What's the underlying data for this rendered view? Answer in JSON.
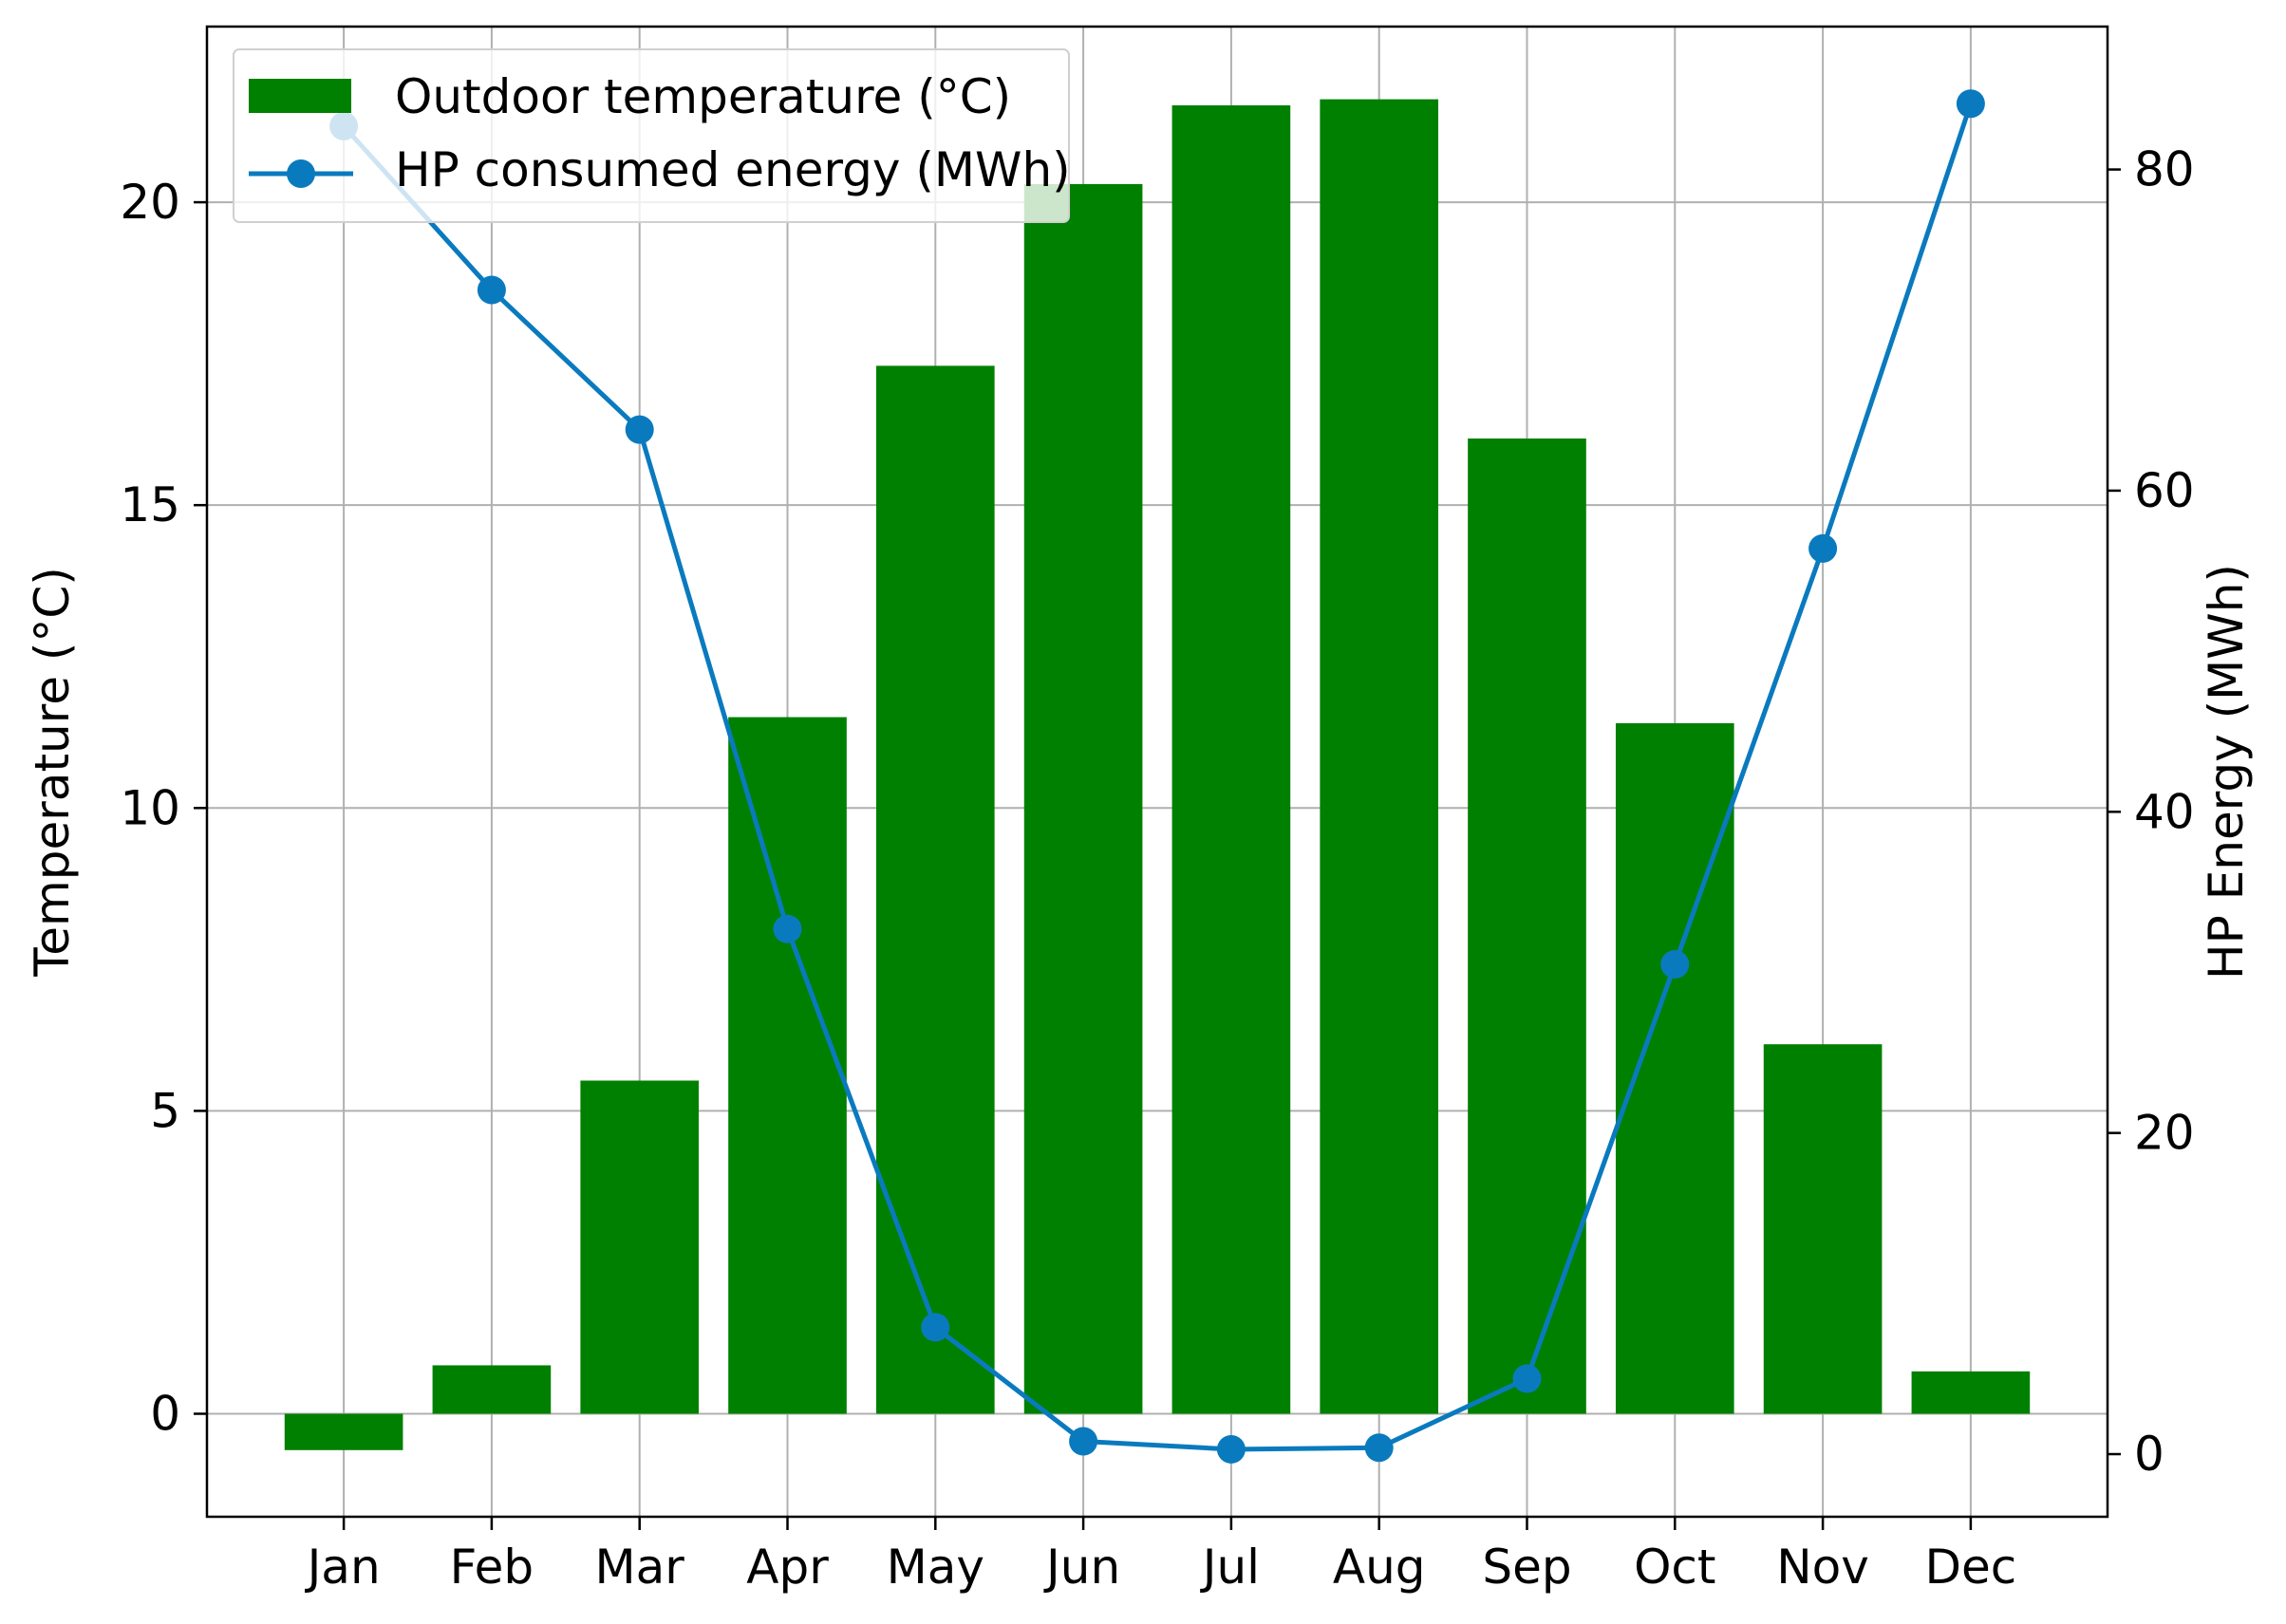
{
  "chart_data": {
    "type": "bar",
    "categories": [
      "Jan",
      "Feb",
      "Mar",
      "Apr",
      "May",
      "Jun",
      "Jul",
      "Aug",
      "Sep",
      "Oct",
      "Nov",
      "Dec"
    ],
    "series": [
      {
        "name": "Outdoor temperature (°C)",
        "type": "bar",
        "axis": "left",
        "color": "#008000",
        "values": [
          -0.6,
          0.8,
          5.5,
          11.5,
          17.3,
          20.3,
          21.6,
          21.7,
          16.1,
          11.4,
          6.1,
          0.7
        ]
      },
      {
        "name": "HP consumed energy (MWh)",
        "type": "line",
        "axis": "right",
        "color": "#0a7abf",
        "marker": "circle",
        "values": [
          82.7,
          72.5,
          63.8,
          32.7,
          7.9,
          0.8,
          0.3,
          0.4,
          4.7,
          30.5,
          56.4,
          84.1
        ]
      }
    ],
    "ylabel": "Temperature (°C)",
    "y2label": "HP Energy (MWh)",
    "ylim": [
      -1.7,
      22.9
    ],
    "y2lim": [
      -3.9,
      88.9
    ],
    "yticks": [
      0,
      5,
      10,
      15,
      20
    ],
    "y2ticks": [
      0,
      20,
      40,
      60,
      80
    ],
    "grid": true,
    "legend": "top-left"
  }
}
